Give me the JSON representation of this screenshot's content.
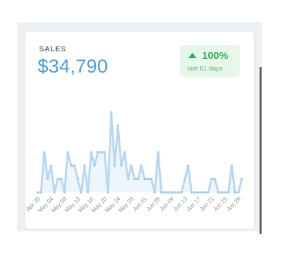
{
  "card": {
    "title": "SALES",
    "value": "$34,790",
    "badge": {
      "icon": "triangle-up-icon",
      "percent": "100%",
      "period": "last 61 days"
    }
  },
  "colors": {
    "value": "#4a9fde",
    "line": "#b9d7f2",
    "area": "#eef6fd",
    "badge_bg": "#e6f7ea",
    "badge_text": "#2cae5c"
  },
  "chart_data": {
    "type": "area",
    "title": "",
    "xlabel": "",
    "ylabel": "",
    "x_tick_labels": [
      "Apr 30",
      "May 04",
      "May 08",
      "May 12",
      "May 16",
      "May 20",
      "May 24",
      "May 28",
      "Jun 01",
      "Jun 05",
      "Jun 09",
      "Jun 13",
      "Jun 17",
      "Jun 21",
      "Jun 25",
      "Jun 29"
    ],
    "ylim": [
      0,
      6
    ],
    "grid": false,
    "series": [
      {
        "values": [
          0,
          0,
          3,
          1,
          2,
          0,
          1,
          1,
          0,
          3,
          2,
          2,
          1,
          0,
          2,
          0,
          3,
          2,
          3,
          3,
          3,
          0,
          6,
          2,
          5,
          2,
          3,
          1,
          2,
          1,
          1,
          2,
          1,
          1,
          1,
          0,
          3,
          0,
          0,
          0,
          0,
          0,
          0,
          0,
          1,
          2,
          0,
          0,
          0,
          0,
          0,
          0,
          1,
          1,
          0,
          0,
          0,
          0,
          2,
          0,
          0,
          1
        ]
      }
    ]
  }
}
